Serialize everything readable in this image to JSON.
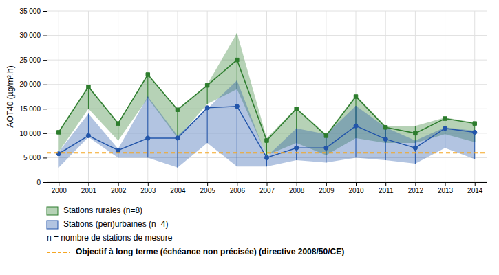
{
  "chart_data": {
    "type": "line",
    "ylabel": "AOT40 (µg/m³.h)",
    "x": [
      2000,
      2001,
      2002,
      2003,
      2004,
      2005,
      2006,
      2007,
      2008,
      2009,
      2010,
      2011,
      2012,
      2013,
      2014
    ],
    "series": [
      {
        "name": "Stations rurales (n=8)",
        "color": "#2d7d2d",
        "marker": "square",
        "values": [
          10200,
          19500,
          12000,
          22000,
          14800,
          19800,
          25000,
          8500,
          15000,
          9500,
          17500,
          11200,
          10000,
          13000,
          12000
        ],
        "min": [
          6200,
          15000,
          8500,
          17200,
          9000,
          16000,
          19000,
          5500,
          8000,
          5500,
          9000,
          8000,
          8000,
          9800,
          8200
        ],
        "max": [
          10500,
          19800,
          12200,
          22200,
          15000,
          20000,
          30500,
          9000,
          15200,
          9800,
          17800,
          11500,
          11500,
          13200,
          12200
        ]
      },
      {
        "name": "Stations (péri)urbaines (n=4)",
        "color": "#2255aa",
        "marker": "circle",
        "values": [
          5800,
          9500,
          6500,
          9000,
          9000,
          15200,
          15500,
          5000,
          7000,
          7000,
          11500,
          8800,
          7000,
          11000,
          10200
        ],
        "min": [
          3000,
          9200,
          5000,
          5000,
          3000,
          8000,
          3200,
          3200,
          4500,
          4000,
          5000,
          4500,
          3800,
          7000,
          4700
        ],
        "max": [
          6200,
          14000,
          6800,
          17500,
          9500,
          15000,
          20800,
          5200,
          11000,
          9800,
          15600,
          11200,
          8500,
          11200,
          10500
        ]
      }
    ],
    "reference_lines": [
      {
        "name": "Objectif à long terme (échéance non précisée) (directive 2008/50/CE)",
        "value": 6000,
        "color": "#f5a623",
        "line_style": "dashed"
      }
    ],
    "annotations": [
      "n = nombre de stations de mesure"
    ],
    "xlim": [
      1999.6,
      2014.4
    ],
    "xticks": [
      2000,
      2001,
      2002,
      2003,
      2004,
      2005,
      2006,
      2007,
      2008,
      2009,
      2010,
      2011,
      2012,
      2013,
      2014
    ],
    "ylim": [
      0,
      35000
    ],
    "yticks": [
      0,
      {
        "value": 5000,
        "label": "5 000"
      },
      {
        "value": 10000,
        "label": "10 000"
      },
      {
        "value": 15000,
        "label": "15 000"
      },
      {
        "value": 20000,
        "label": "20 000"
      },
      {
        "value": 25000,
        "label": "25 000"
      },
      {
        "value": 30000,
        "label": "30 000"
      },
      {
        "value": 35000,
        "label": "35 000"
      }
    ],
    "grid": true,
    "legend": "bottom"
  }
}
